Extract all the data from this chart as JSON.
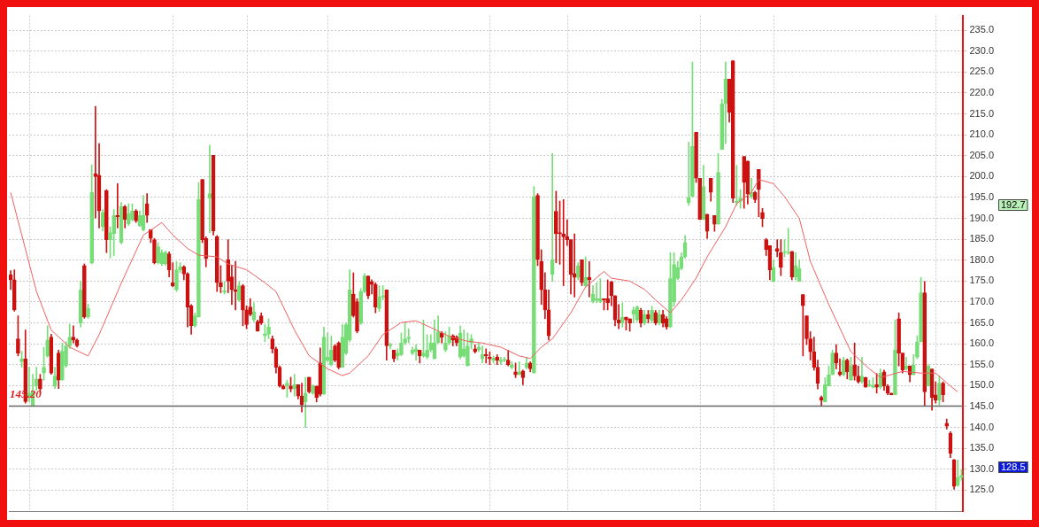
{
  "chart_data": {
    "type": "candlestick",
    "categories": [
      null,
      null,
      null,
      null,
      null,
      null,
      null,
      null,
      null,
      null,
      null,
      null,
      null,
      null,
      null,
      null,
      null,
      null,
      null,
      null,
      null,
      null,
      null,
      null,
      null,
      null,
      null,
      null,
      null,
      null,
      null,
      null,
      null,
      null,
      null,
      null,
      null,
      null,
      null,
      null,
      null,
      null,
      null,
      null,
      null,
      null,
      null,
      null,
      null,
      null,
      null,
      null,
      null,
      null,
      null,
      null,
      null,
      null,
      null,
      null,
      null,
      null,
      null,
      null,
      null,
      null,
      null,
      null,
      null,
      null,
      null,
      null,
      null,
      null,
      null,
      null,
      null,
      null,
      null,
      null,
      null,
      null,
      null,
      null,
      null,
      null,
      null,
      null,
      null,
      null,
      null,
      null,
      null,
      null,
      null,
      null,
      null,
      null,
      null,
      null,
      null,
      null,
      null,
      null,
      null,
      null,
      null,
      null,
      null,
      null,
      null,
      null,
      null,
      null,
      null,
      null,
      null,
      null,
      null,
      null,
      null,
      null,
      null,
      null,
      null,
      null,
      null,
      null,
      null,
      null,
      null,
      null,
      null,
      null,
      null,
      null,
      null,
      null,
      null,
      null,
      null,
      null,
      null,
      null,
      null,
      null,
      null,
      null,
      null,
      null,
      null,
      null,
      null,
      null,
      null,
      null,
      null,
      null,
      null,
      null,
      null,
      null,
      null,
      null,
      null,
      null,
      null,
      null,
      null,
      null,
      null,
      null,
      null,
      null,
      null,
      null,
      null,
      null,
      null,
      null,
      null,
      null,
      null,
      null,
      null,
      null,
      null,
      null,
      null,
      null,
      null,
      null,
      null,
      null,
      null,
      null,
      null,
      null,
      null,
      null,
      null,
      null,
      null,
      null,
      null,
      null,
      null,
      null,
      null,
      null,
      null,
      null,
      null,
      null,
      null,
      null,
      null,
      null,
      null,
      null,
      null,
      null,
      null,
      null,
      null,
      null,
      null,
      null,
      null,
      null,
      null,
      null,
      null,
      null,
      null,
      null,
      null,
      null,
      null,
      null,
      null,
      null,
      null,
      null,
      null,
      null,
      null,
      null,
      null,
      null,
      null,
      null,
      null,
      null,
      null,
      null,
      null,
      null,
      null
    ],
    "ohlc": [
      [
        176.5,
        177.5,
        173,
        175.3
      ],
      [
        175.3,
        177.7,
        167.8,
        168.1
      ],
      [
        161.2,
        166.7,
        157.1,
        157.8
      ],
      [
        155.7,
        158.2,
        154.4,
        156.4
      ],
      [
        156.4,
        163.3,
        145.8,
        146.2
      ],
      [
        147.2,
        154.4,
        146.2,
        148.2
      ],
      [
        145.1,
        152.7,
        145.1,
        148.6
      ],
      [
        149.9,
        154.4,
        148.9,
        151.6
      ],
      [
        151.6,
        152.7,
        148.2,
        149.2
      ],
      [
        153,
        159.2,
        151.3,
        154.4
      ],
      [
        157.1,
        164.3,
        156.8,
        160.9
      ],
      [
        161.6,
        162.3,
        152.7,
        153
      ],
      [
        149.9,
        154.4,
        149.3,
        152.3
      ],
      [
        157.8,
        158.5,
        149.3,
        151.3
      ],
      [
        151.3,
        160.2,
        151.3,
        158.2
      ],
      [
        154.7,
        160.5,
        154.4,
        159.5
      ],
      [
        159.5,
        164.7,
        158.9,
        161.6
      ],
      [
        161.6,
        164.3,
        160.2,
        160.9
      ],
      [
        160.9,
        161.2,
        159.2,
        159.5
      ],
      [
        165,
        175,
        164,
        172.9
      ],
      [
        178.7,
        179.1,
        166.1,
        166.4
      ],
      [
        166.4,
        169.5,
        166.1,
        168.5
      ],
      [
        179.4,
        202.8,
        179.1,
        196.2
      ],
      [
        200.7,
        216.8,
        190.1,
        200
      ],
      [
        200.3,
        207.9,
        187.7,
        191.8
      ],
      [
        188,
        192.1,
        187,
        191.4
      ],
      [
        196.6,
        196.9,
        181.8,
        184.9
      ],
      [
        184.9,
        188,
        180.5,
        186.6
      ],
      [
        186.3,
        192.1,
        181.1,
        190.7
      ],
      [
        190.7,
        198.3,
        187.7,
        190.4
      ],
      [
        184.2,
        193.8,
        183.9,
        192.8
      ],
      [
        192.8,
        193.1,
        187.7,
        189.7
      ],
      [
        188.7,
        193.5,
        188.3,
        191.1
      ],
      [
        189.7,
        193.5,
        189.4,
        191.8
      ],
      [
        191.8,
        192.1,
        189,
        189.4
      ],
      [
        188.3,
        191.8,
        188,
        190.7
      ],
      [
        187.3,
        195.5,
        187,
        190.7
      ],
      [
        193.5,
        195.9,
        189,
        190.7
      ],
      [
        187.3,
        187.3,
        184.2,
        185.2
      ],
      [
        184.9,
        185.2,
        179.1,
        179.4
      ],
      [
        179.4,
        184.2,
        179.1,
        183.2
      ],
      [
        179.1,
        182.5,
        178.7,
        181.8
      ],
      [
        179.1,
        182.2,
        178.8,
        181.8
      ],
      [
        181.5,
        182,
        176,
        177.7
      ],
      [
        174.6,
        179.4,
        173.6,
        173.9
      ],
      [
        172.9,
        179.7,
        172.5,
        177.7
      ],
      [
        177.7,
        179.4,
        177,
        178.4
      ],
      [
        178.4,
        178.7,
        175.3,
        176.7
      ],
      [
        176.7,
        177,
        164,
        168.8
      ],
      [
        169.1,
        169.4,
        162.3,
        164.3
      ],
      [
        164.3,
        167.4,
        164,
        166.7
      ],
      [
        166.4,
        198.6,
        166.4,
        194.5
      ],
      [
        199.3,
        199.3,
        184.2,
        184.9
      ],
      [
        185.2,
        185.6,
        178.4,
        180.4
      ],
      [
        194.8,
        207.5,
        186.6,
        195.9
      ],
      [
        205.1,
        205.1,
        186,
        187
      ],
      [
        185.6,
        185.9,
        172.5,
        174.6
      ],
      [
        174.6,
        178.7,
        172.2,
        173.6
      ],
      [
        172.4,
        174.9,
        171.9,
        172.7
      ],
      [
        180.1,
        184.9,
        172.2,
        175
      ],
      [
        176,
        178.7,
        169.4,
        172.9
      ],
      [
        172.9,
        179.7,
        168.1,
        172.5
      ],
      [
        170.5,
        174.9,
        170.1,
        173.9
      ],
      [
        173.9,
        174.2,
        164.3,
        168.1
      ],
      [
        168.1,
        169.1,
        163.6,
        164.6
      ],
      [
        168.8,
        170.8,
        166.7,
        167
      ],
      [
        165.7,
        169.8,
        165.3,
        167.7
      ],
      [
        165.3,
        165.7,
        163,
        163
      ],
      [
        166.7,
        167.4,
        164.6,
        165
      ],
      [
        161.9,
        164.6,
        160.5,
        162.4
      ],
      [
        162.3,
        166,
        161.2,
        164
      ],
      [
        161.2,
        161.9,
        157.8,
        158.8
      ],
      [
        158.8,
        159.2,
        153,
        154.4
      ],
      [
        154.4,
        154.7,
        149.6,
        149.9
      ],
      [
        149.9,
        150.2,
        149.2,
        149.2
      ],
      [
        149.9,
        151.3,
        147.2,
        150.6
      ],
      [
        149.9,
        152,
        148.5,
        149.2
      ],
      [
        149.2,
        152.7,
        147.5,
        150.2
      ],
      [
        150.2,
        150.2,
        146.8,
        147.5
      ],
      [
        147.5,
        150.6,
        143.7,
        145.4
      ],
      [
        146.1,
        152,
        140,
        148.2
      ],
      [
        152,
        152,
        148.2,
        148.5
      ],
      [
        148.2,
        150.2,
        147.9,
        149.9
      ],
      [
        149.9,
        149.9,
        146.1,
        147.2
      ],
      [
        155.4,
        159,
        147.5,
        147.9
      ],
      [
        147.9,
        164,
        147.9,
        161.6
      ],
      [
        156.1,
        162.6,
        155.7,
        156.8
      ],
      [
        155,
        161.9,
        154.7,
        158.5
      ],
      [
        159.5,
        159.8,
        155.7,
        156.1
      ],
      [
        160.2,
        160.5,
        154,
        154.4
      ],
      [
        154.4,
        164.6,
        154.4,
        161.6
      ],
      [
        157.8,
        165,
        157.4,
        164.6
      ],
      [
        160.9,
        177.7,
        160.5,
        172.9
      ],
      [
        171.9,
        177,
        166.4,
        166.7
      ],
      [
        170.1,
        170.8,
        162.6,
        163
      ],
      [
        165,
        173.2,
        164.6,
        172.5
      ],
      [
        172.5,
        176.8,
        172.2,
        176.2
      ],
      [
        176.2,
        176.2,
        170.8,
        171.5
      ],
      [
        174.8,
        175.3,
        171.9,
        174.2
      ],
      [
        174.2,
        174.6,
        167.4,
        168.8
      ],
      [
        168.4,
        173.9,
        167.7,
        171.2
      ],
      [
        171.2,
        173.9,
        170.5,
        171.5
      ],
      [
        172.9,
        172.9,
        156.1,
        159.5
      ],
      [
        159.5,
        160.2,
        158.8,
        159.8
      ],
      [
        158.5,
        158.5,
        155.7,
        156.4
      ],
      [
        157.1,
        158.8,
        156.1,
        157.8
      ],
      [
        157.4,
        162.6,
        157.1,
        160.2
      ],
      [
        160.2,
        165,
        159.8,
        161.2
      ],
      [
        161.2,
        163.6,
        160.2,
        161.6
      ],
      [
        157.8,
        159.2,
        157.4,
        158.5
      ],
      [
        158.1,
        159.8,
        156.1,
        158.8
      ],
      [
        158.5,
        158.5,
        155.4,
        157.1
      ],
      [
        157.1,
        165.7,
        156.8,
        157.8
      ],
      [
        156.8,
        162.2,
        156.4,
        158.5
      ],
      [
        158.5,
        162.2,
        158.1,
        160.2
      ],
      [
        156.4,
        165.7,
        156.4,
        160.2
      ],
      [
        160.2,
        166.7,
        160.2,
        162.9
      ],
      [
        162.6,
        162.9,
        160.2,
        161.6
      ],
      [
        158.5,
        162.9,
        158.1,
        160.2
      ],
      [
        160.2,
        164,
        159.8,
        161.9
      ],
      [
        161.9,
        162.2,
        159.5,
        160.9
      ],
      [
        161.6,
        161.9,
        159.5,
        160.2
      ],
      [
        156.8,
        164.3,
        156.4,
        162.6
      ],
      [
        157.1,
        163.3,
        156.8,
        158.8
      ],
      [
        154.7,
        162.6,
        154.7,
        159.5
      ],
      [
        160.2,
        162.2,
        158.8,
        161.2
      ],
      [
        158.8,
        159.8,
        157.8,
        158.1
      ],
      [
        158.5,
        160.2,
        158.1,
        159.2
      ],
      [
        156.4,
        159.5,
        155.4,
        157.4
      ],
      [
        157.4,
        158.8,
        155.4,
        157.1
      ],
      [
        156.8,
        158.1,
        155,
        156.4
      ],
      [
        156.1,
        157.1,
        155.4,
        156.6
      ],
      [
        156.8,
        157.4,
        155,
        156.1
      ],
      [
        155.7,
        156.8,
        155,
        156.1
      ],
      [
        156.1,
        156.8,
        155.7,
        156.2
      ],
      [
        156.1,
        158.5,
        154.7,
        155
      ],
      [
        154.4,
        155.7,
        154,
        155
      ],
      [
        153.3,
        155.4,
        151.9,
        152.6
      ],
      [
        152.6,
        155.7,
        152.6,
        153.3
      ],
      [
        153.5,
        153.7,
        150.2,
        151.9
      ],
      [
        154.4,
        156.8,
        154,
        155.4
      ],
      [
        155.4,
        155.7,
        153.3,
        154
      ],
      [
        153,
        197.6,
        153,
        195.2
      ],
      [
        195.5,
        195.9,
        178.7,
        180.1
      ],
      [
        179.7,
        182.5,
        169.4,
        172.9
      ],
      [
        172.9,
        177,
        166,
        168.1
      ],
      [
        168.1,
        172.9,
        160.9,
        161.9
      ],
      [
        176.6,
        205.5,
        174.9,
        180.1
      ],
      [
        191.7,
        196.5,
        179.4,
        186.3
      ],
      [
        186.6,
        194.1,
        179,
        186.3
      ],
      [
        186.3,
        194.5,
        173.9,
        185.6
      ],
      [
        185.6,
        189.7,
        183.5,
        184.9
      ],
      [
        184.9,
        184.9,
        171.9,
        176.6
      ],
      [
        176.8,
        186.3,
        171.2,
        175.9
      ],
      [
        175.9,
        179.4,
        175.3,
        178.7
      ],
      [
        180.1,
        180.1,
        173.9,
        174.6
      ],
      [
        173.9,
        180.8,
        173.6,
        175.9
      ],
      [
        175.9,
        179.7,
        171.2,
        175.3
      ],
      [
        170.1,
        173.9,
        169.8,
        171.9
      ],
      [
        170.5,
        174.6,
        169.8,
        170.8
      ],
      [
        170.1,
        175.6,
        169.8,
        170.8
      ],
      [
        170.8,
        170.8,
        168.1,
        170.5
      ],
      [
        170.8,
        175.3,
        168.1,
        169.8
      ],
      [
        174.9,
        174.9,
        169.1,
        171.5
      ],
      [
        171.5,
        171.5,
        164.3,
        165.7
      ],
      [
        165.7,
        169.4,
        163.6,
        165
      ],
      [
        165,
        169.8,
        164,
        166.4
      ],
      [
        166.4,
        166.4,
        163.3,
        165.7
      ],
      [
        166,
        166,
        163,
        165
      ],
      [
        167.1,
        168.8,
        165,
        168.1
      ],
      [
        165.7,
        169.1,
        165.3,
        168.8
      ],
      [
        168,
        168.5,
        164,
        165
      ],
      [
        165,
        168,
        164.5,
        167
      ],
      [
        167,
        168,
        165,
        166
      ],
      [
        165.5,
        169,
        165,
        168
      ],
      [
        167.5,
        168,
        164.5,
        165
      ],
      [
        165,
        168,
        164.5,
        167
      ],
      [
        167,
        168,
        164,
        165
      ],
      [
        166,
        166.5,
        163.5,
        164
      ],
      [
        164,
        181.8,
        163.9,
        175.6
      ],
      [
        170,
        181.8,
        169,
        179
      ],
      [
        175.6,
        179.7,
        175.3,
        178.3
      ],
      [
        178,
        181.8,
        177.7,
        180.8
      ],
      [
        180.8,
        185.9,
        180.5,
        184.2
      ],
      [
        193.8,
        208.2,
        193.1,
        195
      ],
      [
        195.2,
        227.4,
        195.2,
        207.2
      ],
      [
        210.6,
        210.6,
        198.6,
        199.6
      ],
      [
        199.6,
        199.6,
        189.7,
        189.7
      ],
      [
        189.7,
        202.7,
        189.7,
        197.6
      ],
      [
        191,
        191,
        185.2,
        186.9
      ],
      [
        199.6,
        199.6,
        194.1,
        196.2
      ],
      [
        190.7,
        190.7,
        186.9,
        188.6
      ],
      [
        188.6,
        205.5,
        188.6,
        201
      ],
      [
        206.5,
        218.5,
        206.5,
        217.4
      ],
      [
        217.4,
        227.4,
        207.9,
        223.3
      ],
      [
        223.3,
        223.3,
        213,
        215.4
      ],
      [
        227.7,
        227.7,
        193.8,
        194.8
      ],
      [
        193.8,
        202.7,
        193.1,
        194.1
      ],
      [
        194.1,
        196.9,
        192.4,
        194.8
      ],
      [
        204.8,
        204.8,
        192.4,
        198.6
      ],
      [
        203.7,
        203.7,
        193.4,
        195.8
      ],
      [
        195.2,
        199.6,
        194.8,
        196.2
      ],
      [
        196.2,
        196.5,
        193.8,
        194.5
      ],
      [
        201.7,
        201.7,
        190.4,
        196.9
      ],
      [
        191.4,
        192.4,
        188,
        190
      ],
      [
        184.9,
        185.2,
        181.1,
        182.5
      ],
      [
        183.5,
        183.5,
        175.3,
        177.7
      ],
      [
        174.9,
        180.1,
        174.9,
        178.3
      ],
      [
        182.8,
        184.9,
        180.8,
        182.1
      ],
      [
        181.8,
        184.9,
        176.3,
        178.3
      ],
      [
        181.8,
        184.9,
        180.8,
        182.1
      ],
      [
        181.6,
        187.6,
        181.4,
        181.9
      ],
      [
        182.1,
        182.1,
        175.3,
        176
      ],
      [
        176,
        181.8,
        175.3,
        178.7
      ],
      [
        174.9,
        180.1,
        174.9,
        178
      ],
      [
        171.8,
        171.8,
        157.1,
        169.1
      ],
      [
        166.7,
        166.7,
        159.8,
        161.2
      ],
      [
        161.2,
        162.9,
        156.1,
        158.1
      ],
      [
        158.1,
        161.6,
        153.7,
        154.4
      ],
      [
        154.4,
        156.1,
        149.2,
        150.6
      ],
      [
        147.2,
        147.5,
        145.1,
        146.5
      ],
      [
        146.1,
        151.9,
        146.1,
        150.2
      ],
      [
        149.9,
        154.7,
        149.9,
        152.6
      ],
      [
        152.6,
        158.5,
        152.6,
        157.8
      ],
      [
        157.8,
        159.8,
        154,
        155.4
      ],
      [
        153.3,
        156.4,
        152.3,
        152.6
      ],
      [
        152.6,
        156.8,
        152.3,
        156.1
      ],
      [
        156.1,
        156.4,
        151.6,
        153.3
      ],
      [
        151.3,
        156.8,
        151.3,
        154.7
      ],
      [
        155,
        160.2,
        151.3,
        152.3
      ],
      [
        152.3,
        154.7,
        150.6,
        150.9
      ],
      [
        150.9,
        156.8,
        150.6,
        152.3
      ],
      [
        151.9,
        152,
        149.6,
        149.6
      ],
      [
        149.9,
        151.3,
        149.8,
        150.2
      ],
      [
        149.6,
        151.9,
        149.4,
        150.1
      ],
      [
        150.2,
        152.9,
        148.2,
        149.6
      ],
      [
        149.6,
        154,
        149.2,
        153
      ],
      [
        153.3,
        153.7,
        148.9,
        149.9
      ],
      [
        149.9,
        150.2,
        147.8,
        148.2
      ],
      [
        148.2,
        148.2,
        147.8,
        147.8
      ],
      [
        147.8,
        165.7,
        147.8,
        158.5
      ],
      [
        166,
        167.4,
        154.7,
        157.8
      ],
      [
        157.8,
        157.8,
        153,
        153.7
      ],
      [
        154,
        156.8,
        153.7,
        154.7
      ],
      [
        154.7,
        154.7,
        150.9,
        152.6
      ],
      [
        152.6,
        157.4,
        152.6,
        155
      ],
      [
        156.8,
        161.9,
        156.4,
        160.5
      ],
      [
        160.5,
        175.9,
        160.5,
        172.2
      ],
      [
        172.2,
        174.9,
        145.1,
        148.5
      ],
      [
        149.9,
        155,
        149.9,
        154.7
      ],
      [
        154,
        154,
        144.1,
        147.2
      ],
      [
        147.8,
        150.9,
        145.8,
        146.5
      ],
      [
        146.5,
        152.3,
        145.4,
        150.6
      ],
      [
        150.6,
        150.9,
        146.1,
        147.8
      ],
      [
        141,
        142,
        139.6,
        140.3
      ],
      [
        138.6,
        139,
        132.8,
        133.8
      ],
      [
        132.2,
        132.4,
        125.2,
        125.9
      ],
      [
        126.2,
        132.2,
        125.9,
        128
      ],
      [
        128,
        130,
        127.3,
        128.5
      ]
    ],
    "colors": [
      "#cc1111",
      "#cc1111",
      "#cc1111",
      "#77dd77",
      "#cc1111",
      "#77dd77",
      "#77dd77",
      "#77dd77",
      "#cc1111",
      "#77dd77",
      "#77dd77",
      "#cc1111",
      "#77dd77",
      "#cc1111",
      "#77dd77",
      "#77dd77",
      "#77dd77",
      "#cc1111",
      "#cc1111",
      "#77dd77",
      "#cc1111",
      "#77dd77",
      "#77dd77",
      "#cc1111",
      "#cc1111",
      "#77dd77",
      "#cc1111",
      "#77dd77",
      "#77dd77",
      "#cc1111",
      "#77dd77",
      "#cc1111",
      "#77dd77",
      "#77dd77",
      "#cc1111",
      "#77dd77",
      "#77dd77",
      "#cc1111",
      "#cc1111",
      "#cc1111",
      "#77dd77",
      "#77dd77",
      "#77dd77",
      "#cc1111",
      "#cc1111",
      "#77dd77",
      "#77dd77",
      "#cc1111",
      "#cc1111",
      "#cc1111",
      "#77dd77",
      "#77dd77",
      "#cc1111",
      "#cc1111",
      "#77dd77",
      "#cc1111",
      "#cc1111",
      "#cc1111",
      "#77dd77",
      "#cc1111",
      "#cc1111",
      "#cc1111",
      "#77dd77",
      "#cc1111",
      "#cc1111",
      "#cc1111",
      "#77dd77",
      "#cc1111",
      "#cc1111",
      "#77dd77",
      "#77dd77",
      "#cc1111",
      "#cc1111",
      "#cc1111",
      "#cc1111",
      "#77dd77",
      "#cc1111",
      "#77dd77",
      "#cc1111",
      "#cc1111",
      "#77dd77",
      "#cc1111",
      "#77dd77",
      "#cc1111",
      "#cc1111",
      "#77dd77",
      "#77dd77",
      "#77dd77",
      "#cc1111",
      "#cc1111",
      "#77dd77",
      "#77dd77",
      "#77dd77",
      "#cc1111",
      "#cc1111",
      "#77dd77",
      "#77dd77",
      "#cc1111",
      "#cc1111",
      "#cc1111",
      "#77dd77",
      "#77dd77",
      "#cc1111",
      "#77dd77",
      "#cc1111",
      "#77dd77",
      "#77dd77",
      "#77dd77",
      "#77dd77",
      "#77dd77",
      "#77dd77",
      "#cc1111",
      "#77dd77",
      "#77dd77",
      "#77dd77",
      "#77dd77",
      "#77dd77",
      "#cc1111",
      "#77dd77",
      "#77dd77",
      "#cc1111",
      "#cc1111",
      "#77dd77",
      "#77dd77",
      "#77dd77",
      "#77dd77",
      "#cc1111",
      "#77dd77",
      "#77dd77",
      "#cc1111",
      "#cc1111",
      "#77dd77",
      "#cc1111",
      "#77dd77",
      "#77dd77",
      "#cc1111",
      "#77dd77",
      "#cc1111",
      "#77dd77",
      "#cc1111",
      "#77dd77",
      "#cc1111",
      "#77dd77",
      "#cc1111",
      "#cc1111",
      "#cc1111",
      "#cc1111",
      "#77dd77",
      "#cc1111",
      "#cc1111",
      "#cc1111",
      "#cc1111",
      "#cc1111",
      "#cc1111",
      "#77dd77",
      "#cc1111",
      "#77dd77",
      "#cc1111",
      "#77dd77",
      "#77dd77",
      "#77dd77",
      "#cc1111",
      "#cc1111",
      "#cc1111",
      "#cc1111",
      "#cc1111",
      "#77dd77",
      "#cc1111",
      "#cc1111",
      "#77dd77",
      "#77dd77",
      "#cc1111",
      "#77dd77",
      "#cc1111",
      "#77dd77",
      "#cc1111",
      "#77dd77",
      "#cc1111",
      "#cc1111",
      "#77dd77",
      "#77dd77",
      "#77dd77",
      "#77dd77",
      "#77dd77",
      "#77dd77",
      "#77dd77",
      "#cc1111",
      "#cc1111",
      "#77dd77",
      "#cc1111",
      "#cc1111",
      "#cc1111",
      "#77dd77",
      "#77dd77",
      "#77dd77",
      "#cc1111",
      "#cc1111",
      "#77dd77",
      "#77dd77",
      "#cc1111",
      "#cc1111",
      "#77dd77",
      "#cc1111",
      "#cc1111",
      "#cc1111",
      "#cc1111",
      "#cc1111",
      "#77dd77",
      "#cc1111",
      "#cc1111",
      "#77dd77",
      "#77dd77",
      "#cc1111",
      "#77dd77",
      "#77dd77",
      "#cc1111",
      "#cc1111",
      "#cc1111",
      "#cc1111",
      "#cc1111",
      "#cc1111",
      "#77dd77",
      "#77dd77",
      "#77dd77",
      "#cc1111",
      "#cc1111",
      "#77dd77",
      "#cc1111",
      "#77dd77",
      "#cc1111",
      "#cc1111",
      "#77dd77",
      "#cc1111",
      "#77dd77",
      "#77dd77",
      "#cc1111",
      "#77dd77",
      "#cc1111",
      "#cc1111",
      "#cc1111",
      "#77dd77",
      "#cc1111",
      "#cc1111",
      "#77dd77",
      "#cc1111",
      "#77dd77",
      "#77dd77",
      "#77dd77",
      "#cc1111",
      "#77dd77",
      "#cc1111",
      "#cc1111",
      "#77dd77",
      "#cc1111",
      "#cc1111",
      "#cc1111",
      "#cc1111",
      "#77dd77",
      "#77dd77"
    ],
    "series": [
      {
        "type": "line",
        "color": "#f06060",
        "values": [
          196.2,
          null,
          null,
          null,
          null,
          null,
          null,
          172.5,
          null,
          null,
          null,
          163.3,
          null,
          null,
          null,
          null,
          159.2,
          null,
          null,
          null,
          null,
          157.1,
          null,
          null,
          162.2,
          null,
          null,
          null,
          null,
          null,
          174.5,
          null,
          null,
          null,
          null,
          null,
          186,
          null,
          null,
          null,
          null,
          189,
          null,
          null,
          186,
          null,
          null,
          null,
          182.8,
          null,
          null,
          181.2,
          null,
          null,
          null,
          null,
          180.8,
          null,
          null,
          179.1,
          null,
          null,
          null,
          null,
          177.7,
          null,
          null,
          null,
          null,
          174.6,
          null,
          null,
          172.5,
          null,
          null,
          null,
          null,
          163.3,
          null,
          null,
          null,
          157.1,
          null,
          null,
          null,
          null,
          154,
          null,
          null,
          null,
          152.4,
          null,
          153,
          null,
          null,
          null,
          null,
          157.1,
          null,
          null,
          null,
          162.2,
          null,
          null,
          null,
          null,
          165.1,
          null,
          null,
          null,
          165.5,
          null,
          null,
          null,
          163.9,
          null,
          null,
          null,
          null,
          161.8,
          null,
          null,
          null,
          null,
          160.6,
          null,
          null,
          null,
          160.2,
          null,
          null,
          null,
          null,
          159.2,
          null,
          null,
          null,
          null,
          157.1,
          null,
          null,
          156.5,
          null,
          null,
          159.2,
          null,
          null,
          161.2,
          null,
          null,
          null,
          null,
          167.4,
          null,
          null,
          null,
          173.6,
          null,
          null,
          null,
          null,
          177.3,
          null,
          175.7,
          null,
          null,
          null,
          null,
          175,
          null,
          null,
          null,
          173,
          null,
          null,
          170.5,
          null,
          null,
          null,
          167.4,
          null,
          null,
          170.5,
          null,
          null,
          null,
          175.7,
          null,
          null,
          180.8,
          null,
          null,
          null,
          null,
          188,
          null,
          null,
          193.5,
          null,
          null,
          null,
          196.2,
          null,
          199.3,
          null,
          null,
          null,
          198.3,
          null,
          null,
          195.2,
          null,
          null,
          null,
          190,
          null,
          null,
          179.7,
          null,
          null,
          null,
          null,
          169.4,
          null,
          null,
          null,
          null,
          null,
          158.1,
          null,
          null,
          null,
          null,
          154,
          null,
          null,
          152,
          null,
          152.4,
          null,
          null,
          null,
          153.4,
          null,
          null,
          null,
          null,
          153,
          null,
          null,
          null,
          153,
          null,
          null,
          null,
          149.9,
          null,
          148.5,
          null
        ]
      }
    ],
    "ylim": [
      120,
      238.5
    ],
    "yticks": [
      {
        "value": 125,
        "label": "125.0"
      },
      {
        "value": 130,
        "label": "130.0"
      },
      {
        "value": 135,
        "label": "135.0"
      },
      {
        "value": 140,
        "label": "140.0"
      },
      {
        "value": 145,
        "label": "145.0"
      },
      {
        "value": 150,
        "label": "150.0"
      },
      {
        "value": 155,
        "label": "155.0"
      },
      {
        "value": 160,
        "label": "160.0"
      },
      {
        "value": 165,
        "label": "165.0"
      },
      {
        "value": 170,
        "label": "170.0"
      },
      {
        "value": 175,
        "label": "175.0"
      },
      {
        "value": 180,
        "label": "180.0"
      },
      {
        "value": 185,
        "label": "185.0"
      },
      {
        "value": 190,
        "label": "190.0"
      },
      {
        "value": 195,
        "label": "195.0"
      },
      {
        "value": 200,
        "label": "200.0"
      },
      {
        "value": 205,
        "label": "205.0"
      },
      {
        "value": 210,
        "label": "210.0"
      },
      {
        "value": 215,
        "label": "215.0"
      },
      {
        "value": 220,
        "label": "220.0"
      },
      {
        "value": 225,
        "label": "225.0"
      },
      {
        "value": 230,
        "label": "230.0"
      },
      {
        "value": 235,
        "label": "235.0"
      }
    ],
    "grid": "y",
    "tick_labels": "y",
    "ref_lines": [
      {
        "axis": "y",
        "value": 145.2,
        "label": "145.20",
        "color": "#666666"
      }
    ],
    "annotations": [
      "192.7",
      "128.5"
    ]
  }
}
